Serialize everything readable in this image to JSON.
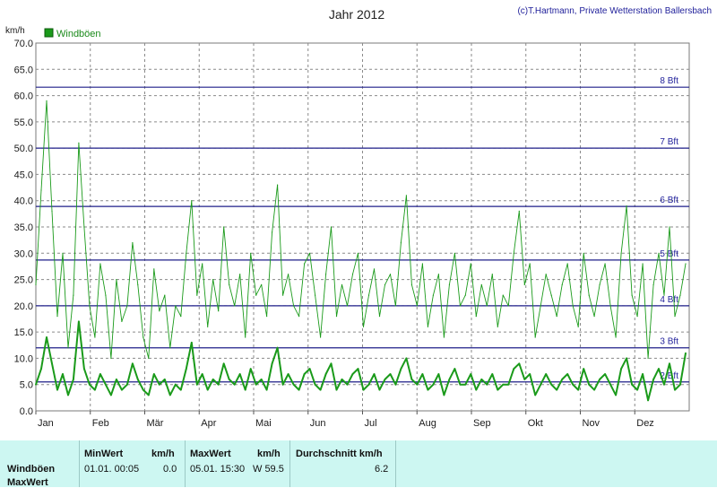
{
  "title": "Jahr 2012",
  "credit": "(c)T.Hartmann, Private Wetterstation Ballersbach",
  "unit": "km/h",
  "legend": "Windböen",
  "colors": {
    "series": "#1a9a1a",
    "grid": "#8a8a8a",
    "bft": "#1f1f8a",
    "plot_bg": "#ffffff",
    "summary_bg": "#cdf7f2"
  },
  "chart_data": {
    "type": "line",
    "title": "Jahr 2012",
    "ylabel": "km/h",
    "ylim": [
      0,
      70
    ],
    "yticks": [
      "0.0",
      "5.0",
      "10.0",
      "15.0",
      "20.0",
      "25.0",
      "30.0",
      "35.0",
      "40.0",
      "45.0",
      "50.0",
      "55.0",
      "60.0",
      "65.0",
      "70.0"
    ],
    "xticks": [
      "Jan",
      "Feb",
      "Mär",
      "Apr",
      "Mai",
      "Jun",
      "Jul",
      "Aug",
      "Sep",
      "Okt",
      "Nov",
      "Dez"
    ],
    "grid": true,
    "legend_position": "top-left",
    "reference_lines": [
      {
        "label": "2 Bft",
        "value": 5.5
      },
      {
        "label": "3 Bft",
        "value": 12
      },
      {
        "label": "4 Bft",
        "value": 20
      },
      {
        "label": "5 Bft",
        "value": 28.7
      },
      {
        "label": "6 Bft",
        "value": 38.9
      },
      {
        "label": "7 Bft",
        "value": 50
      },
      {
        "label": "8 Bft",
        "value": 61.6
      }
    ],
    "series": [
      {
        "name": "Windböen",
        "style": "thin",
        "x": [
          1,
          4,
          7,
          10,
          13,
          16,
          19,
          22,
          25,
          28,
          31,
          34,
          37,
          40,
          43,
          46,
          49,
          52,
          55,
          58,
          61,
          64,
          67,
          70,
          73,
          76,
          79,
          82,
          85,
          88,
          91,
          94,
          97,
          100,
          103,
          106,
          109,
          112,
          115,
          118,
          121,
          124,
          127,
          130,
          133,
          136,
          139,
          142,
          145,
          148,
          151,
          154,
          157,
          160,
          163,
          166,
          169,
          172,
          175,
          178,
          181,
          184,
          187,
          190,
          193,
          196,
          199,
          202,
          205,
          208,
          211,
          214,
          217,
          220,
          223,
          226,
          229,
          232,
          235,
          238,
          241,
          244,
          247,
          250,
          253,
          256,
          259,
          262,
          265,
          268,
          271,
          274,
          277,
          280,
          283,
          286,
          289,
          292,
          295,
          298,
          301,
          304,
          307,
          310,
          313,
          316,
          319,
          322,
          325,
          328,
          331,
          334,
          337,
          340,
          343,
          346,
          349,
          352,
          355,
          358,
          361,
          364
        ],
        "values": [
          24,
          42,
          59,
          38,
          18,
          30,
          12,
          22,
          51,
          35,
          20,
          14,
          28,
          22,
          10,
          25,
          17,
          20,
          32,
          24,
          14,
          10,
          27,
          19,
          22,
          12,
          20,
          18,
          30,
          40,
          22,
          28,
          16,
          25,
          19,
          35,
          24,
          20,
          26,
          14,
          30,
          22,
          24,
          18,
          34,
          43,
          22,
          26,
          20,
          18,
          28,
          30,
          22,
          14,
          26,
          35,
          18,
          24,
          20,
          26,
          30,
          16,
          22,
          27,
          18,
          24,
          26,
          20,
          32,
          41,
          24,
          20,
          28,
          16,
          22,
          26,
          14,
          24,
          30,
          20,
          22,
          28,
          18,
          24,
          20,
          26,
          16,
          22,
          20,
          30,
          38,
          24,
          28,
          14,
          20,
          26,
          22,
          18,
          24,
          28,
          20,
          16,
          30,
          22,
          18,
          24,
          28,
          20,
          14,
          30,
          39,
          22,
          18,
          28,
          10,
          24,
          30,
          22,
          35,
          18,
          22,
          28
        ]
      },
      {
        "name": "",
        "style": "thick",
        "x": [
          1,
          4,
          7,
          10,
          13,
          16,
          19,
          22,
          25,
          28,
          31,
          34,
          37,
          40,
          43,
          46,
          49,
          52,
          55,
          58,
          61,
          64,
          67,
          70,
          73,
          76,
          79,
          82,
          85,
          88,
          91,
          94,
          97,
          100,
          103,
          106,
          109,
          112,
          115,
          118,
          121,
          124,
          127,
          130,
          133,
          136,
          139,
          142,
          145,
          148,
          151,
          154,
          157,
          160,
          163,
          166,
          169,
          172,
          175,
          178,
          181,
          184,
          187,
          190,
          193,
          196,
          199,
          202,
          205,
          208,
          211,
          214,
          217,
          220,
          223,
          226,
          229,
          232,
          235,
          238,
          241,
          244,
          247,
          250,
          253,
          256,
          259,
          262,
          265,
          268,
          271,
          274,
          277,
          280,
          283,
          286,
          289,
          292,
          295,
          298,
          301,
          304,
          307,
          310,
          313,
          316,
          319,
          322,
          325,
          328,
          331,
          334,
          337,
          340,
          343,
          346,
          349,
          352,
          355,
          358,
          361,
          364
        ],
        "values": [
          5,
          8,
          14,
          9,
          4,
          7,
          3,
          6,
          17,
          8,
          5,
          4,
          7,
          5,
          3,
          6,
          4,
          5,
          9,
          6,
          4,
          3,
          7,
          5,
          6,
          3,
          5,
          4,
          8,
          13,
          5,
          7,
          4,
          6,
          5,
          9,
          6,
          5,
          7,
          4,
          8,
          5,
          6,
          4,
          9,
          12,
          5,
          7,
          5,
          4,
          7,
          8,
          5,
          4,
          7,
          9,
          4,
          6,
          5,
          7,
          8,
          4,
          5,
          7,
          4,
          6,
          7,
          5,
          8,
          10,
          6,
          5,
          7,
          4,
          5,
          7,
          3,
          6,
          8,
          5,
          5,
          7,
          4,
          6,
          5,
          7,
          4,
          5,
          5,
          8,
          9,
          6,
          7,
          3,
          5,
          7,
          5,
          4,
          6,
          7,
          5,
          4,
          8,
          5,
          4,
          6,
          7,
          5,
          3,
          8,
          10,
          5,
          4,
          7,
          2,
          6,
          8,
          5,
          9,
          4,
          5,
          11
        ]
      }
    ]
  },
  "summary": {
    "row_labels": [
      "Windböen",
      "MaxWert"
    ],
    "min_header": "MinWert",
    "min_unit": "km/h",
    "min_date": "01.01.  00:05",
    "min_value": "0.0",
    "max_header": "MaxWert",
    "max_unit": "km/h",
    "max_date": "05.01.  15:30",
    "max_value": "W 59.5",
    "avg_header": "Durchschnitt km/h",
    "avg_value": "6.2"
  }
}
